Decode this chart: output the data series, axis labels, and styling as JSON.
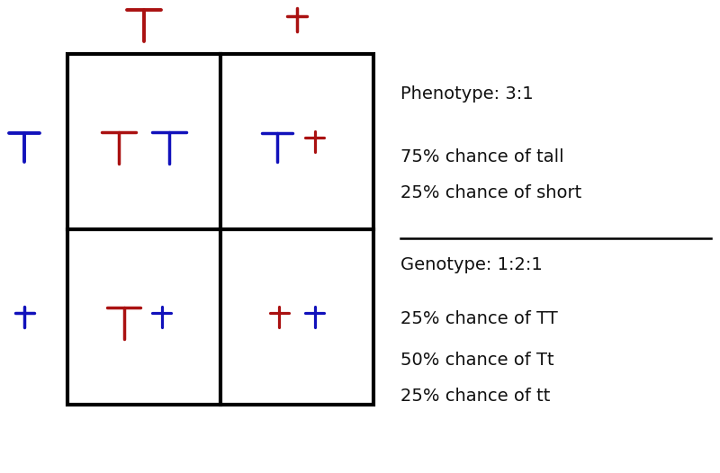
{
  "background_color": "#ffffff",
  "red_color": "#aa1111",
  "blue_color": "#1111bb",
  "black_color": "#000000",
  "text_color": "#111111",
  "phenotype_lines": [
    "Phenotype: 3:1",
    "75% chance of tall",
    "25% chance of short"
  ],
  "genotype_lines": [
    "Genotype: 1:2:1",
    "25% chance of TT",
    "50% chance of Tt",
    "25% chance of tt"
  ],
  "font_size": 14
}
